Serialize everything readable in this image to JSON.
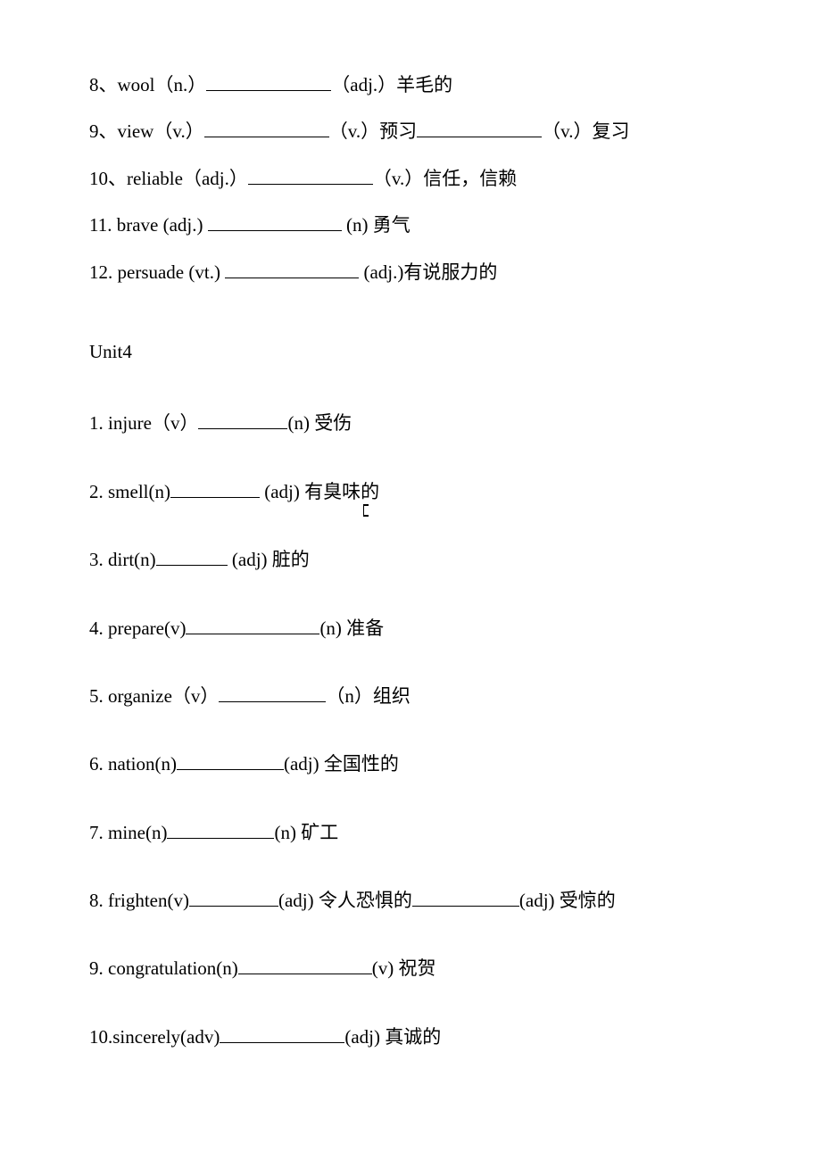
{
  "section1": {
    "items": [
      {
        "num": "8、",
        "word": "wool（n.）",
        "blanks": [
          {
            "w": "w140"
          }
        ],
        "parts": [
          "（adj.）羊毛的"
        ]
      },
      {
        "num": "9、",
        "word": "view（v.）",
        "blanks": [
          {
            "w": "w140"
          },
          {
            "w": "w140"
          }
        ],
        "parts": [
          "（v.）预习",
          "（v.）复习"
        ]
      },
      {
        "num": "10、",
        "word": "reliable（adj.）",
        "blanks": [
          {
            "w": "w140"
          }
        ],
        "parts": [
          "（v.）信任，信赖"
        ]
      },
      {
        "num": "11. ",
        "word": "brave (adj.) ",
        "blanks": [
          {
            "w": "w150"
          }
        ],
        "parts": [
          " (n) 勇气"
        ]
      },
      {
        "num": "12. ",
        "word": "persuade (vt.) ",
        "blanks": [
          {
            "w": "w150"
          }
        ],
        "parts": [
          " (adj.)有说服力的"
        ]
      }
    ]
  },
  "section2": {
    "title": "Unit4",
    "items": [
      {
        "num": "1.",
        "word": "injure（v）",
        "blanks": [
          {
            "w": "w100"
          }
        ],
        "parts": [
          "(n) 受伤"
        ]
      },
      {
        "num": "2.",
        "word": "smell(n)",
        "blanks": [
          {
            "w": "w100"
          }
        ],
        "parts": [
          " (adj) 有臭味的"
        ]
      },
      {
        "num": "3.",
        "word": "dirt(n)",
        "blanks": [
          {
            "w": "w80"
          }
        ],
        "parts": [
          "   (adj) 脏的"
        ],
        "cursor": true
      },
      {
        "num": "4.",
        "word": "prepare(v)",
        "blanks": [
          {
            "w": "w150"
          }
        ],
        "parts": [
          "(n) 准备"
        ]
      },
      {
        "num": "5.",
        "word": "organize（v）",
        "blanks": [
          {
            "w": "w120"
          }
        ],
        "parts": [
          "（n）组织"
        ]
      },
      {
        "num": "6.",
        "word": "nation(n)",
        "blanks": [
          {
            "w": "w120"
          }
        ],
        "parts": [
          "(adj) 全国性的"
        ]
      },
      {
        "num": "7.",
        "word": "mine(n)",
        "blanks": [
          {
            "w": "w120"
          }
        ],
        "parts": [
          "(n) 矿工"
        ]
      },
      {
        "num": "8.",
        "word": "frighten(v)",
        "blanks": [
          {
            "w": "w100"
          },
          {
            "w": "w120"
          }
        ],
        "parts": [
          "(adj) 令人恐惧的",
          "(adj) 受惊的"
        ]
      },
      {
        "num": "9.",
        "word": "congratulation(n)",
        "blanks": [
          {
            "w": "w150"
          }
        ],
        "parts": [
          "(v) 祝贺"
        ]
      },
      {
        "num": "10.",
        "word": "sincerely(adv)",
        "blanks": [
          {
            "w": "w140"
          }
        ],
        "parts": [
          "(adj) 真诚的"
        ],
        "nospace": true
      }
    ]
  }
}
